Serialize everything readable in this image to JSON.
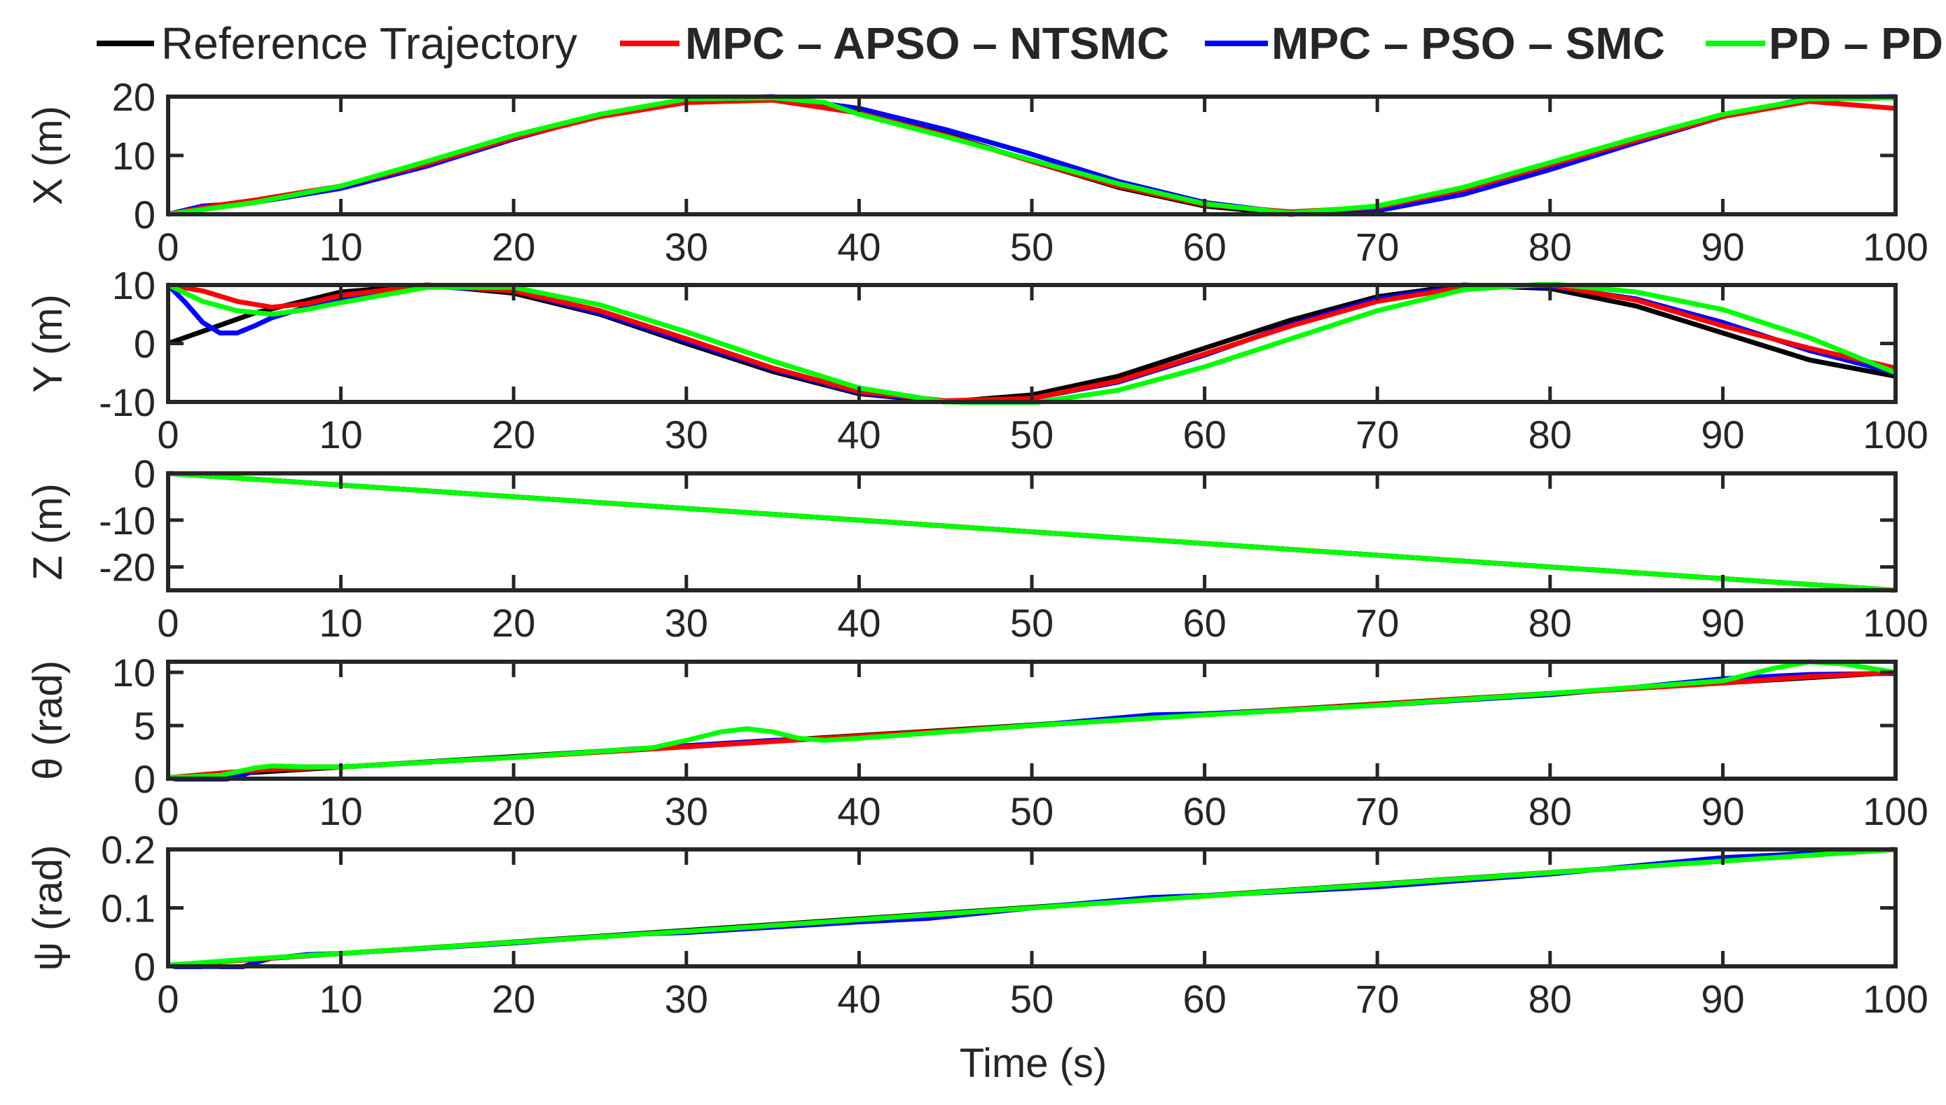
{
  "chart_data": {
    "type": "line",
    "x_label": "Time (s)",
    "xlim": [
      0,
      100
    ],
    "x_ticks": [
      0,
      10,
      20,
      30,
      40,
      50,
      60,
      70,
      80,
      90,
      100
    ],
    "legend": {
      "placement": "top",
      "entries": [
        {
          "key": "ref",
          "label": "Reference Trajectory",
          "color": "#000000",
          "bold": false
        },
        {
          "key": "mpc_apso",
          "label": "MPC – APSO – NTSMC",
          "color": "#ff0000",
          "bold": true
        },
        {
          "key": "mpc_pso",
          "label": "MPC – PSO – SMC",
          "color": "#0000ff",
          "bold": true
        },
        {
          "key": "pd_pd",
          "label": "PD – PD",
          "color": "#00ff00",
          "bold": true
        }
      ]
    },
    "panels": [
      {
        "id": "x",
        "ylabel": "X (m)",
        "ylim": [
          0,
          20
        ],
        "y_ticks": [
          0,
          10,
          20
        ],
        "y_tick_labels": [
          "0",
          "10",
          "20"
        ],
        "series": [
          {
            "key": "ref",
            "x": [
              0,
              5,
              10,
              15,
              20,
              25,
              30,
              35,
              40,
              45,
              50,
              55,
              60,
              65,
              70,
              75,
              80,
              85,
              90,
              95,
              100
            ],
            "y": [
              0,
              2,
              4.8,
              8.8,
              13.2,
              16.8,
              19.4,
              19.8,
              17.6,
              13.6,
              9,
              4.6,
              1.4,
              0,
              1,
              4,
              8.2,
              12.6,
              16.8,
              19.6,
              19.8
            ]
          },
          {
            "key": "mpc_apso",
            "x": [
              0,
              3,
              5,
              10,
              15,
              20,
              25,
              30,
              35,
              40,
              45,
              50,
              55,
              60,
              65,
              70,
              75,
              80,
              85,
              90,
              95,
              100
            ],
            "y": [
              0,
              1.6,
              2.4,
              4.8,
              8.6,
              13,
              16.6,
              19,
              19.4,
              17.2,
              13.4,
              9,
              4.8,
              1.6,
              0.4,
              1.2,
              4.2,
              8.4,
              12.6,
              16.6,
              19.2,
              18
            ]
          },
          {
            "key": "mpc_pso",
            "x": [
              0,
              2,
              5,
              10,
              15,
              20,
              25,
              30,
              35,
              40,
              45,
              50,
              55,
              60,
              65,
              70,
              75,
              80,
              85,
              90,
              95,
              100
            ],
            "y": [
              0,
              1.4,
              2,
              4.4,
              8.2,
              12.8,
              16.8,
              19.6,
              20,
              18,
              14.4,
              10.2,
              5.6,
              2,
              0.2,
              0.6,
              3.4,
              7.6,
              12.2,
              16.6,
              19.8,
              20
            ]
          },
          {
            "key": "pd_pd",
            "x": [
              0,
              5,
              10,
              15,
              20,
              25,
              30,
              35,
              38,
              40,
              45,
              50,
              55,
              60,
              65,
              70,
              75,
              80,
              85,
              90,
              95,
              100
            ],
            "y": [
              0,
              2,
              4.8,
              9,
              13.4,
              17,
              19.6,
              19.8,
              19,
              17,
              13.2,
              9.2,
              5.2,
              1.8,
              0.2,
              1.4,
              4.6,
              8.8,
              13,
              17,
              19.6,
              19.8
            ]
          }
        ]
      },
      {
        "id": "y",
        "ylabel": "Y (m)",
        "ylim": [
          -10,
          10
        ],
        "y_ticks": [
          -10,
          0,
          10
        ],
        "y_tick_labels": [
          "-10",
          "0",
          "10"
        ],
        "series": [
          {
            "key": "ref",
            "x": [
              0,
              5,
              10,
              15,
              20,
              25,
              30,
              35,
              40,
              45,
              50,
              55,
              60,
              65,
              70,
              75,
              80,
              85,
              90,
              95,
              100
            ],
            "y": [
              0,
              5.2,
              8.8,
              10,
              8.6,
              5,
              0,
              -4.8,
              -8.6,
              -10,
              -8.8,
              -5.6,
              -0.8,
              4,
              8,
              10,
              9.4,
              6.4,
              1.8,
              -2.8,
              -5.6
            ]
          },
          {
            "key": "mpc_apso",
            "x": [
              0,
              2,
              4,
              6,
              8,
              10,
              15,
              20,
              25,
              30,
              35,
              40,
              45,
              50,
              55,
              60,
              65,
              70,
              75,
              80,
              85,
              90,
              95,
              100
            ],
            "y": [
              10,
              9,
              7.2,
              6.2,
              6.8,
              8.2,
              10,
              9,
              5.6,
              0.8,
              -4.2,
              -8.2,
              -9.8,
              -9.4,
              -6.4,
              -1.8,
              3,
              7.2,
              9.6,
              10,
              7.4,
              3,
              -0.8,
              -4.2
            ]
          },
          {
            "key": "mpc_pso",
            "x": [
              0,
              1,
              2,
              3,
              4,
              5,
              6,
              8,
              10,
              15,
              20,
              25,
              30,
              35,
              40,
              45,
              50,
              55,
              60,
              65,
              70,
              75,
              80,
              85,
              90,
              95,
              100
            ],
            "y": [
              10,
              7,
              3.6,
              1.8,
              1.8,
              3,
              4.4,
              6.2,
              7.8,
              9.8,
              9,
              5.2,
              0.4,
              -4.4,
              -8.4,
              -10,
              -9.4,
              -6.6,
              -2,
              3.2,
              7.6,
              9.8,
              9.8,
              7.6,
              3.6,
              -1.2,
              -5
            ]
          },
          {
            "key": "pd_pd",
            "x": [
              0,
              2,
              4,
              6,
              8,
              10,
              15,
              20,
              25,
              30,
              35,
              40,
              45,
              50,
              55,
              60,
              65,
              70,
              75,
              80,
              85,
              90,
              95,
              100
            ],
            "y": [
              10,
              7.2,
              5.6,
              5,
              5.8,
              7,
              9.6,
              9.6,
              6.6,
              2,
              -3,
              -7.6,
              -10,
              -10.2,
              -8,
              -4,
              0.8,
              5.6,
              9.2,
              10.2,
              8.8,
              5.8,
              1,
              -5
            ]
          }
        ]
      },
      {
        "id": "z",
        "ylabel": "Z (m)",
        "ylim": [
          -25,
          0
        ],
        "y_ticks": [
          -20,
          -10,
          0
        ],
        "y_tick_labels": [
          "-20",
          "-10",
          "0"
        ],
        "series": [
          {
            "key": "ref",
            "x": [
              0,
              100
            ],
            "y": [
              0,
              -25
            ]
          },
          {
            "key": "mpc_apso",
            "x": [
              0,
              100
            ],
            "y": [
              0,
              -25
            ]
          },
          {
            "key": "mpc_pso",
            "x": [
              0,
              100
            ],
            "y": [
              0,
              -25
            ]
          },
          {
            "key": "pd_pd",
            "x": [
              0,
              100
            ],
            "y": [
              0,
              -25
            ]
          }
        ]
      },
      {
        "id": "theta",
        "ylabel": "θ (rad)",
        "ylim": [
          0,
          11
        ],
        "y_ticks": [
          0,
          5,
          10
        ],
        "y_tick_labels": [
          "0",
          "5",
          "10"
        ],
        "series": [
          {
            "key": "ref",
            "x": [
              0,
              100
            ],
            "y": [
              0.1,
              10
            ]
          },
          {
            "key": "mpc_apso",
            "x": [
              0,
              5,
              10,
              20,
              30,
              40,
              50,
              60,
              70,
              80,
              85,
              90,
              95,
              100
            ],
            "y": [
              0.1,
              0.8,
              1.1,
              2,
              3,
              4,
              5,
              6,
              7,
              8,
              8.5,
              9,
              9.6,
              10
            ]
          },
          {
            "key": "mpc_pso",
            "x": [
              0,
              1,
              2,
              3,
              4,
              5,
              6,
              8,
              10,
              20,
              27,
              30,
              35,
              40,
              50,
              57,
              60,
              70,
              80,
              85,
              90,
              95,
              100
            ],
            "y": [
              0.1,
              -0.2,
              -0.3,
              -0.2,
              0.2,
              0.7,
              1,
              1.1,
              1.1,
              2,
              2.8,
              3.1,
              3.6,
              3.9,
              5,
              6,
              6.1,
              6.9,
              7.9,
              8.6,
              9.4,
              9.8,
              9.9
            ]
          },
          {
            "key": "pd_pd",
            "x": [
              0,
              3,
              5,
              6,
              8,
              10,
              20,
              28,
              30,
              32,
              33.5,
              35,
              36.5,
              38,
              40,
              50,
              60,
              70,
              80,
              85,
              90,
              93,
              95,
              97,
              100
            ],
            "y": [
              0.1,
              0.3,
              1,
              1.2,
              1.1,
              1.1,
              2,
              2.9,
              3.6,
              4.4,
              4.7,
              4.4,
              3.8,
              3.6,
              3.8,
              5,
              6,
              6.9,
              8,
              8.6,
              9.2,
              10.4,
              11,
              10.8,
              10
            ]
          }
        ]
      },
      {
        "id": "psi",
        "ylabel": "ψ (rad)",
        "ylim": [
          0,
          0.2
        ],
        "y_ticks": [
          0,
          0.1,
          0.2
        ],
        "y_tick_labels": [
          "0",
          "0.1",
          "0.2"
        ],
        "series": [
          {
            "key": "ref",
            "x": [
              0,
              100
            ],
            "y": [
              0.002,
              0.2
            ]
          },
          {
            "key": "mpc_apso",
            "x": [
              0,
              5,
              10,
              20,
              30,
              40,
              50,
              60,
              70,
              80,
              90,
              100
            ],
            "y": [
              0.002,
              0.012,
              0.022,
              0.041,
              0.06,
              0.08,
              0.1,
              0.12,
              0.14,
              0.16,
              0.18,
              0.2
            ]
          },
          {
            "key": "mpc_pso",
            "x": [
              0,
              1,
              2,
              3,
              4,
              5,
              6,
              8,
              10,
              20,
              27,
              30,
              40,
              44,
              50,
              57,
              60,
              70,
              80,
              90,
              100
            ],
            "y": [
              0.002,
              -0.004,
              -0.008,
              -0.008,
              -0.004,
              0.006,
              0.014,
              0.02,
              0.022,
              0.04,
              0.055,
              0.058,
              0.076,
              0.082,
              0.1,
              0.118,
              0.121,
              0.136,
              0.158,
              0.186,
              0.2
            ]
          },
          {
            "key": "pd_pd",
            "x": [
              0,
              5,
              10,
              20,
              30,
              40,
              50,
              60,
              70,
              80,
              90,
              100
            ],
            "y": [
              0.002,
              0.013,
              0.022,
              0.041,
              0.06,
              0.08,
              0.1,
              0.12,
              0.14,
              0.16,
              0.18,
              0.2
            ]
          }
        ]
      }
    ]
  }
}
